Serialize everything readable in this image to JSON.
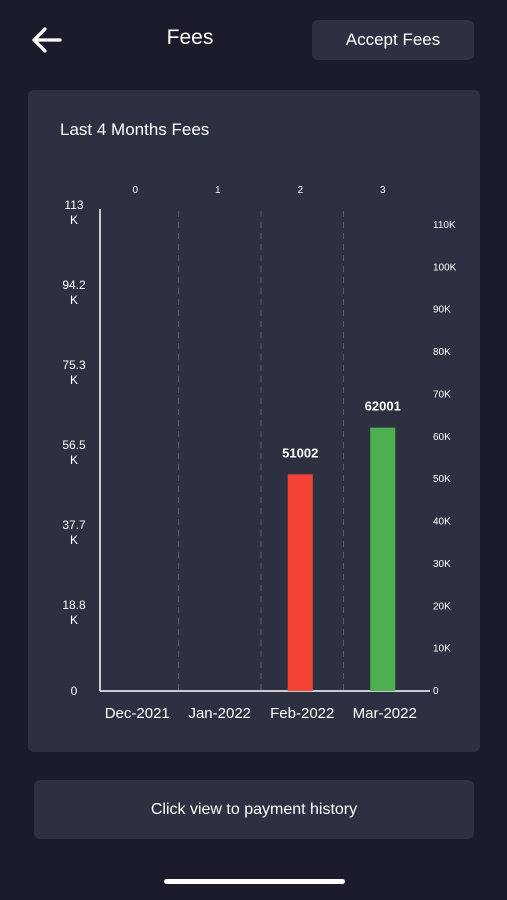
{
  "header": {
    "title": "Fees",
    "accept_label": "Accept Fees"
  },
  "card": {
    "title": "Last 4 Months Fees"
  },
  "chart_data": {
    "type": "bar",
    "categories": [
      "Dec-2021",
      "Jan-2022",
      "Feb-2022",
      "Mar-2022"
    ],
    "top_ticks": [
      "0",
      "1",
      "2",
      "3"
    ],
    "values": [
      0,
      0,
      51002,
      62001
    ],
    "data_labels": [
      "",
      "",
      "51002",
      "62001"
    ],
    "bar_colors": [
      "#f44336",
      "#f44336",
      "#f44336",
      "#4caf50"
    ],
    "ylim_left": [
      0,
      113000
    ],
    "left_ticks": [
      {
        "value": 113000,
        "l1": "113",
        "l2": "K"
      },
      {
        "value": 94200,
        "l1": "94.2",
        "l2": "K"
      },
      {
        "value": 75300,
        "l1": "75.3",
        "l2": "K"
      },
      {
        "value": 56500,
        "l1": "56.5",
        "l2": "K"
      },
      {
        "value": 37700,
        "l1": "37.7",
        "l2": "K"
      },
      {
        "value": 18800,
        "l1": "18.8",
        "l2": "K"
      },
      {
        "value": 0,
        "l1": "0",
        "l2": ""
      }
    ],
    "right_ticks": [
      {
        "value": 110000,
        "label": "110K"
      },
      {
        "value": 100000,
        "label": "100K"
      },
      {
        "value": 90000,
        "label": "90K"
      },
      {
        "value": 80000,
        "label": "80K"
      },
      {
        "value": 70000,
        "label": "70K"
      },
      {
        "value": 60000,
        "label": "60K"
      },
      {
        "value": 50000,
        "label": "50K"
      },
      {
        "value": 40000,
        "label": "40K"
      },
      {
        "value": 30000,
        "label": "30K"
      },
      {
        "value": 20000,
        "label": "20K"
      },
      {
        "value": 10000,
        "label": "10K"
      },
      {
        "value": 0,
        "label": "0"
      }
    ],
    "grid": "vertical dashed"
  },
  "history": {
    "label": "Click view to payment history"
  },
  "colors": {
    "background": "#1b1c2b",
    "card": "#2c3041",
    "red_bar": "#f44336",
    "green_bar": "#4caf50"
  }
}
